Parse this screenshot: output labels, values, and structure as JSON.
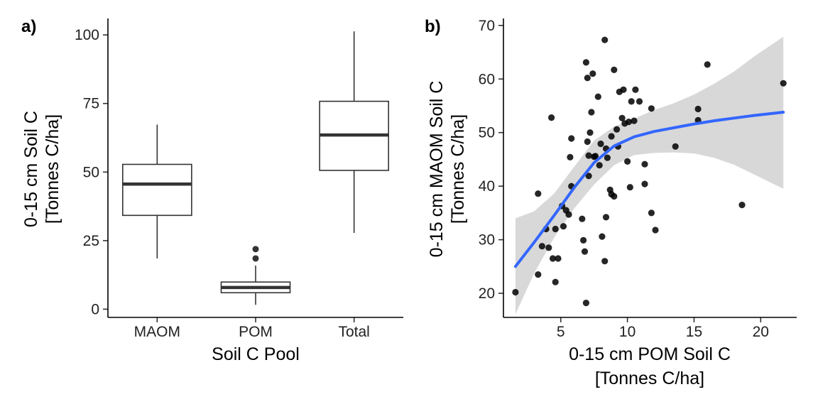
{
  "chart_data": [
    {
      "panel_label": "a)",
      "type": "box",
      "categories": [
        "MAOM",
        "POM",
        "Total"
      ],
      "boxes": [
        {
          "name": "MAOM",
          "lower_whisker": 18.5,
          "q1": 34.2,
          "median": 45.6,
          "q3": 52.8,
          "upper_whisker": 67.3,
          "outliers": []
        },
        {
          "name": "POM",
          "lower_whisker": 1.6,
          "q1": 6.0,
          "median": 7.9,
          "q3": 9.9,
          "upper_whisker": 15.9,
          "outliers": [
            18.5,
            21.9
          ]
        },
        {
          "name": "Total",
          "lower_whisker": 27.8,
          "q1": 50.6,
          "median": 63.5,
          "q3": 75.8,
          "upper_whisker": 101.3,
          "outliers": []
        }
      ],
      "xlabel": "Soil C Pool",
      "ylabel": [
        "0-15 cm Soil C",
        "[Tonnes C/ha]"
      ],
      "yticks": [
        0,
        25,
        50,
        75,
        100
      ],
      "ylim": [
        -3,
        106
      ]
    },
    {
      "panel_label": "b)",
      "type": "scatter",
      "xlabel": [
        "0-15 cm POM Soil C",
        "[Tonnes C/ha]"
      ],
      "ylabel": [
        "0-15 cm MAOM Soil C",
        "[Tonnes C/ha]"
      ],
      "xticks": [
        5,
        10,
        15,
        20
      ],
      "yticks": [
        20,
        30,
        40,
        50,
        60,
        70
      ],
      "xlim": [
        0.7,
        22.7
      ],
      "ylim": [
        15.5,
        71.3
      ],
      "points": [
        [
          1.6,
          20.2
        ],
        [
          3.3,
          23.5
        ],
        [
          3.3,
          38.6
        ],
        [
          3.6,
          28.8
        ],
        [
          3.9,
          32.0
        ],
        [
          4.1,
          28.5
        ],
        [
          4.3,
          52.8
        ],
        [
          4.4,
          26.5
        ],
        [
          4.6,
          32.0
        ],
        [
          4.6,
          22.1
        ],
        [
          4.8,
          26.5
        ],
        [
          5.1,
          36.3
        ],
        [
          5.2,
          32.5
        ],
        [
          5.4,
          35.5
        ],
        [
          5.6,
          34.7
        ],
        [
          5.7,
          45.4
        ],
        [
          5.8,
          40.0
        ],
        [
          5.8,
          48.9
        ],
        [
          6.6,
          33.9
        ],
        [
          6.7,
          29.9
        ],
        [
          6.8,
          27.8
        ],
        [
          6.9,
          63.1
        ],
        [
          6.9,
          18.2
        ],
        [
          7.0,
          60.2
        ],
        [
          7.0,
          48.3
        ],
        [
          7.1,
          45.7
        ],
        [
          7.1,
          41.9
        ],
        [
          7.2,
          50.0
        ],
        [
          7.3,
          53.8
        ],
        [
          7.4,
          61.0
        ],
        [
          7.5,
          45.5
        ],
        [
          7.6,
          45.6
        ],
        [
          7.8,
          56.7
        ],
        [
          7.9,
          43.9
        ],
        [
          8.0,
          47.9
        ],
        [
          8.1,
          30.6
        ],
        [
          8.3,
          26.0
        ],
        [
          8.3,
          67.3
        ],
        [
          8.4,
          34.2
        ],
        [
          8.4,
          47.0
        ],
        [
          8.5,
          45.3
        ],
        [
          8.7,
          39.3
        ],
        [
          8.8,
          49.3
        ],
        [
          8.8,
          38.5
        ],
        [
          9.0,
          61.7
        ],
        [
          9.0,
          38.1
        ],
        [
          9.2,
          50.6
        ],
        [
          9.3,
          47.4
        ],
        [
          9.4,
          57.6
        ],
        [
          9.6,
          52.7
        ],
        [
          9.7,
          58.0
        ],
        [
          9.8,
          51.7
        ],
        [
          10.0,
          44.6
        ],
        [
          10.1,
          52.0
        ],
        [
          10.2,
          39.8
        ],
        [
          10.3,
          55.8
        ],
        [
          10.5,
          52.2
        ],
        [
          10.6,
          58.0
        ],
        [
          10.9,
          55.8
        ],
        [
          11.3,
          44.1
        ],
        [
          11.3,
          40.4
        ],
        [
          11.8,
          35.0
        ],
        [
          11.8,
          54.5
        ],
        [
          12.1,
          31.8
        ],
        [
          13.6,
          47.4
        ],
        [
          15.3,
          54.4
        ],
        [
          15.3,
          52.3
        ],
        [
          16.0,
          62.7
        ],
        [
          18.6,
          36.5
        ],
        [
          21.7,
          59.2
        ]
      ],
      "smooth": {
        "color": "#3366FF",
        "x": [
          1.6,
          3.0,
          4.5,
          6.0,
          7.5,
          9.0,
          10.5,
          12.0,
          13.5,
          15.0,
          16.5,
          18.0,
          19.5,
          21.7
        ],
        "y": [
          25.0,
          29.5,
          34.5,
          39.7,
          44.4,
          47.5,
          49.2,
          50.2,
          50.9,
          51.6,
          52.2,
          52.7,
          53.2,
          53.8
        ],
        "lower": [
          16.1,
          23.7,
          30.4,
          35.8,
          40.3,
          43.9,
          45.8,
          46.2,
          46.3,
          46.1,
          45.3,
          44.0,
          42.2,
          39.5
        ],
        "upper": [
          34.0,
          35.3,
          38.6,
          43.6,
          48.5,
          51.1,
          52.6,
          54.2,
          55.5,
          57.1,
          59.1,
          61.4,
          64.2,
          67.9
        ]
      }
    }
  ]
}
